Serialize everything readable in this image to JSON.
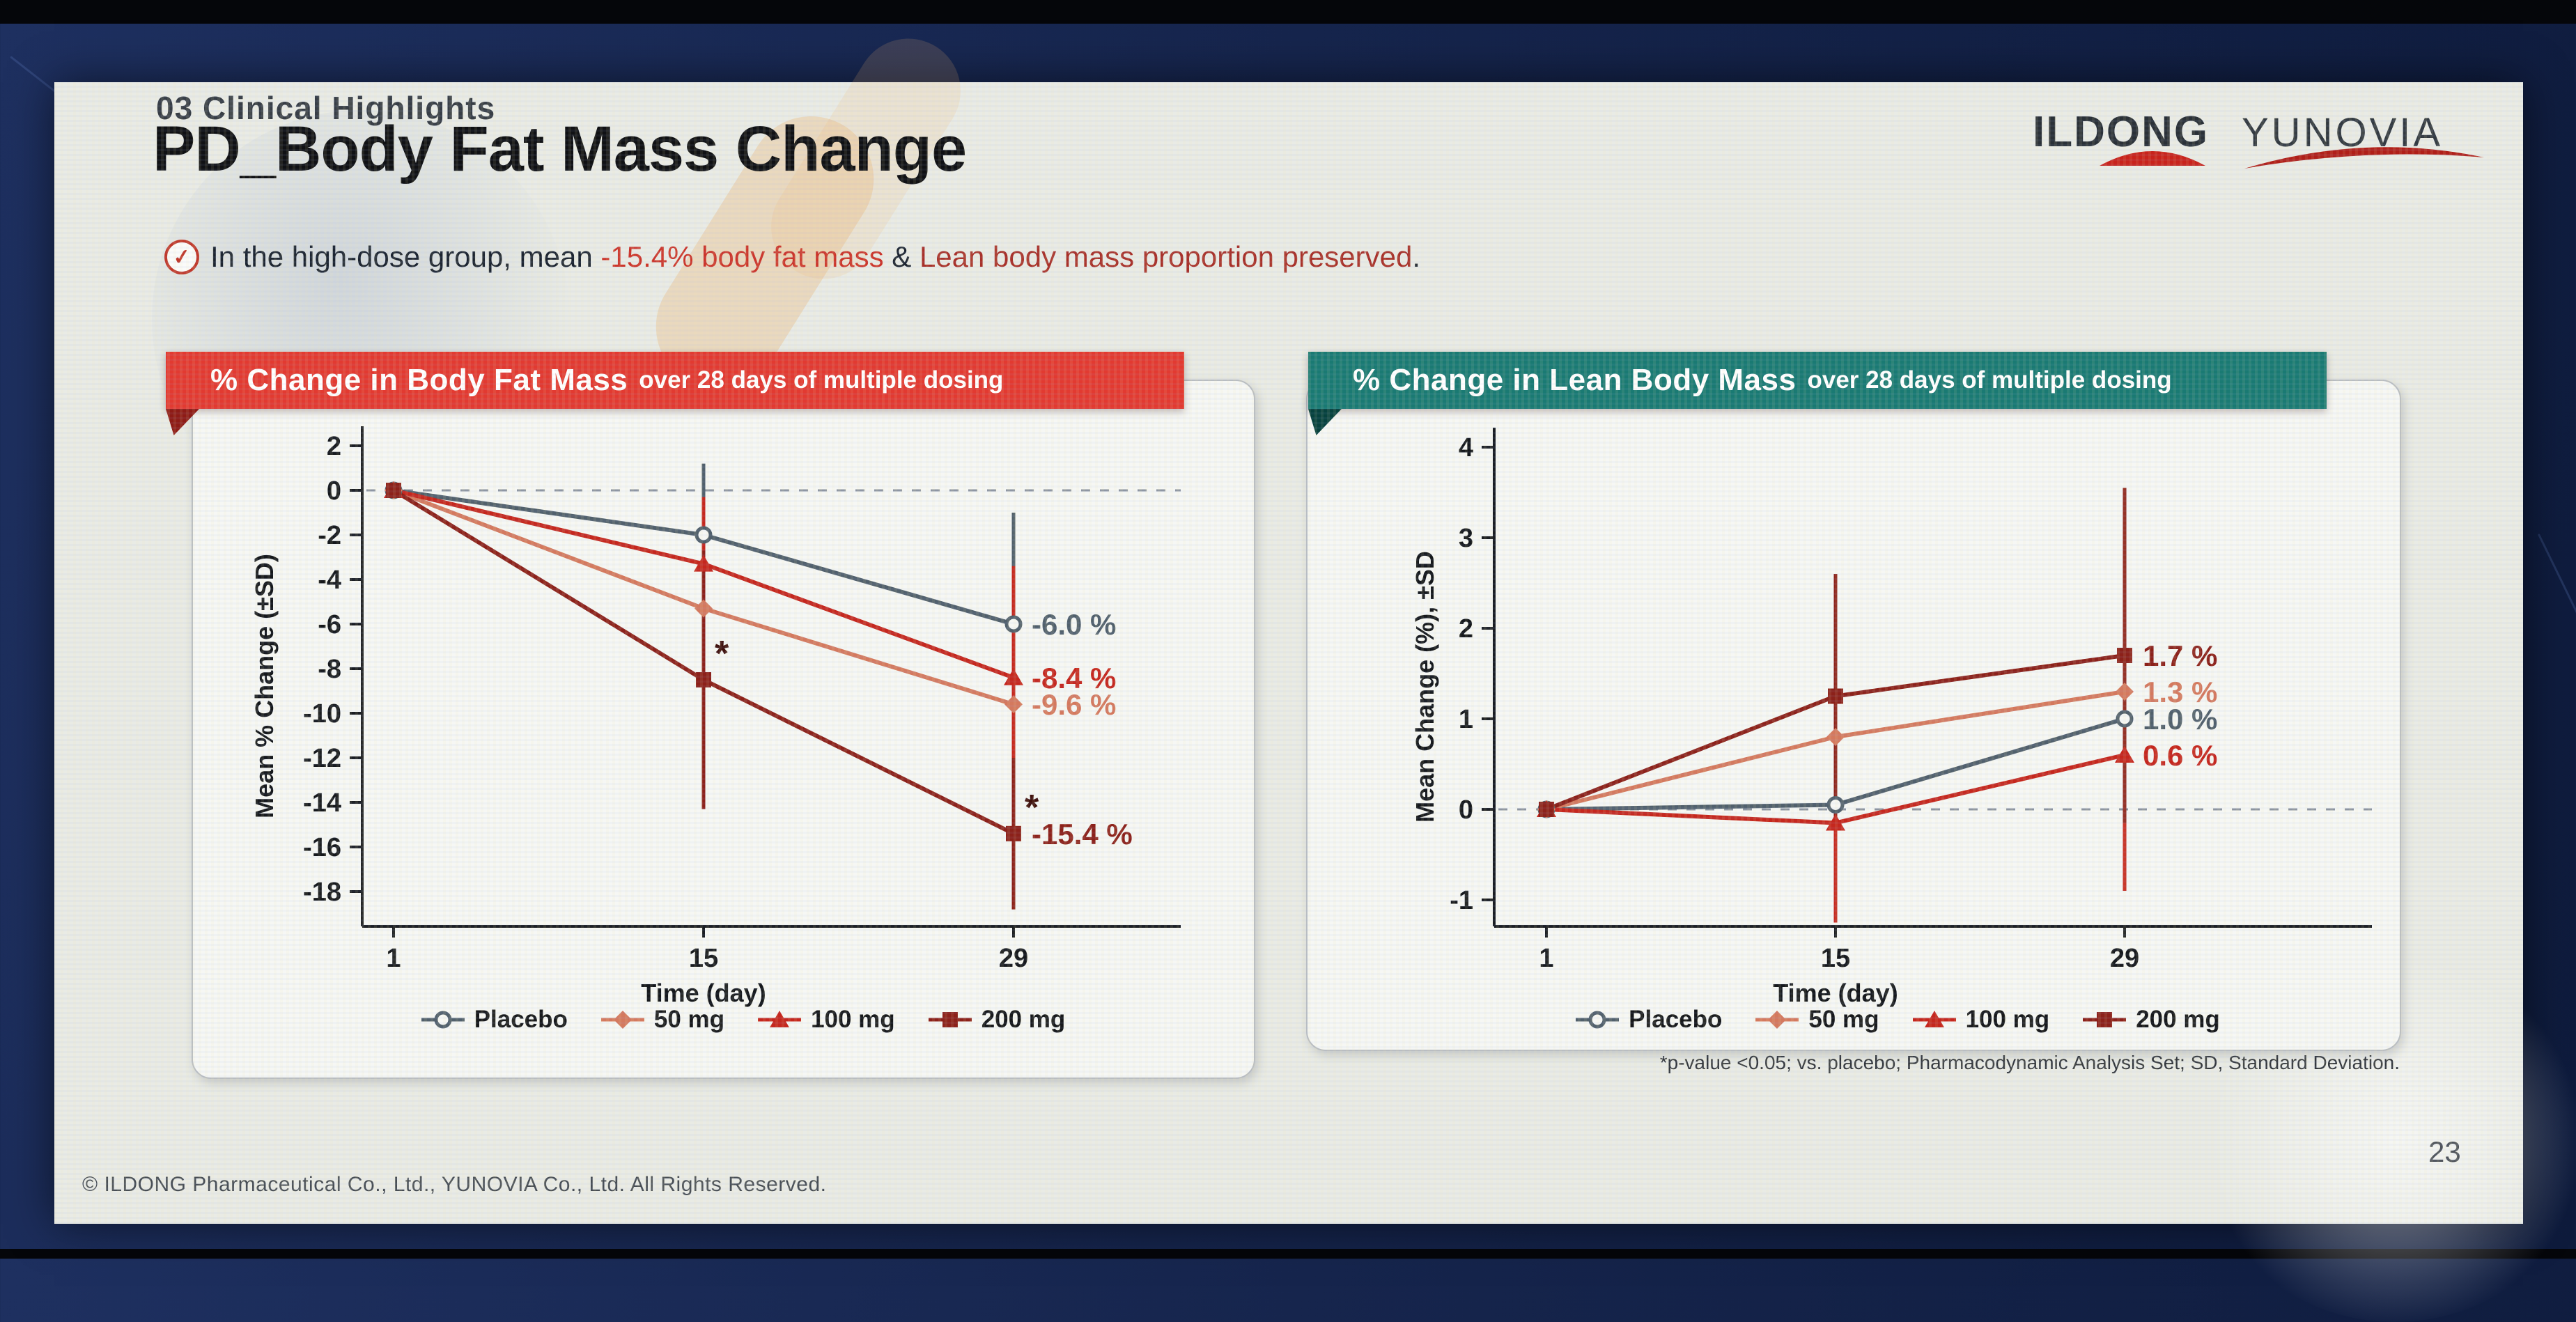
{
  "slide": {
    "kicker": "03 Clinical Highlights",
    "title": "PD_Body Fat Mass Change",
    "copyright": "© ILDONG Pharmaceutical Co., Ltd., YUNOVIA Co., Ltd. All Rights Reserved.",
    "footnote": "*p-value <0.05; vs. placebo; Pharmacodynamic Analysis Set; SD, Standard Deviation.",
    "page_number": "23"
  },
  "logo": {
    "primary": "ILDONG",
    "secondary": "YUNOVIA",
    "accent_color": "#c8231c",
    "text_color": "#2b3138"
  },
  "key_message": {
    "icon_char": "✓",
    "prefix": "In the high-dose group, mean ",
    "highlight_fat": "-15.4% body fat mass",
    "connector": " & ",
    "highlight_lean": "Lean body mass proportion preserved",
    "suffix": ".",
    "highlight_fat_color": "#cc352a",
    "highlight_lean_color": "#a83028"
  },
  "chart_data": [
    {
      "type": "line",
      "banner_title": "% Change in Body Fat Mass",
      "banner_subtitle": "over 28 days of multiple dosing",
      "banner_color": "#e23a31",
      "banner_fold_color": "#8e1b16",
      "xlabel": "Time (day)",
      "ylabel": "Mean % Change (±SD)",
      "x": [
        1,
        15,
        29
      ],
      "yticks": [
        2,
        0,
        -2,
        -4,
        -6,
        -8,
        -10,
        -12,
        -14,
        -16,
        -18
      ],
      "ylim": [
        -19.7,
        2.8
      ],
      "zero_reference_line": true,
      "legend_position": "bottom",
      "sig_symbol": "*",
      "series": [
        {
          "name": "Placebo",
          "marker": "circle-open",
          "color": "#51606c",
          "values": [
            0,
            -2.0,
            -6.0
          ],
          "sd": [
            0,
            3.2,
            5.0
          ],
          "end_label": "-6.0 %"
        },
        {
          "name": "50 mg",
          "marker": "diamond",
          "color": "#d4795e",
          "values": [
            0,
            -5.3,
            -9.6
          ],
          "sd": [
            0,
            3.2,
            5.2
          ],
          "end_label": "-9.6 %"
        },
        {
          "name": "100 mg",
          "marker": "triangle",
          "color": "#c5271e",
          "values": [
            0,
            -3.3,
            -8.4
          ],
          "sd": [
            0,
            3.0,
            5.0
          ],
          "end_label": "-8.4 %"
        },
        {
          "name": "200 mg",
          "marker": "square",
          "color": "#8c211a",
          "values": [
            0,
            -8.5,
            -15.4
          ],
          "sd": [
            0,
            5.8,
            3.4
          ],
          "end_label": "-15.4 %",
          "sig": [
            1,
            2
          ]
        }
      ]
    },
    {
      "type": "line",
      "banner_title": "% Change in Lean Body Mass",
      "banner_subtitle": "over 28 days of multiple dosing",
      "banner_color": "#1a7a73",
      "banner_fold_color": "#07423e",
      "xlabel": "Time (day)",
      "ylabel": "Mean Change (%), ±SD",
      "x": [
        1,
        15,
        29
      ],
      "yticks": [
        4,
        3,
        2,
        1,
        0,
        -1
      ],
      "ylim": [
        -1.3,
        4.4
      ],
      "zero_reference_line": true,
      "legend_position": "bottom",
      "sig_symbol": "*",
      "series": [
        {
          "name": "Placebo",
          "marker": "circle-open",
          "color": "#51606c",
          "values": [
            0,
            0.05,
            1.0
          ],
          "sd": [
            0,
            0.55,
            0.85
          ],
          "end_label": "1.0 %"
        },
        {
          "name": "50 mg",
          "marker": "diamond",
          "color": "#d4795e",
          "values": [
            0,
            0.8,
            1.3
          ],
          "sd": [
            0,
            1.05,
            1.65
          ],
          "end_label": "1.3 %"
        },
        {
          "name": "100 mg",
          "marker": "triangle",
          "color": "#c5271e",
          "values": [
            0,
            -0.15,
            0.6
          ],
          "sd": [
            0,
            1.1,
            1.5
          ],
          "end_label": "0.6 %"
        },
        {
          "name": "200 mg",
          "marker": "square",
          "color": "#8c211a",
          "values": [
            0,
            1.25,
            1.7
          ],
          "sd": [
            0,
            1.35,
            1.85
          ],
          "end_label": "1.7 %"
        }
      ]
    }
  ]
}
